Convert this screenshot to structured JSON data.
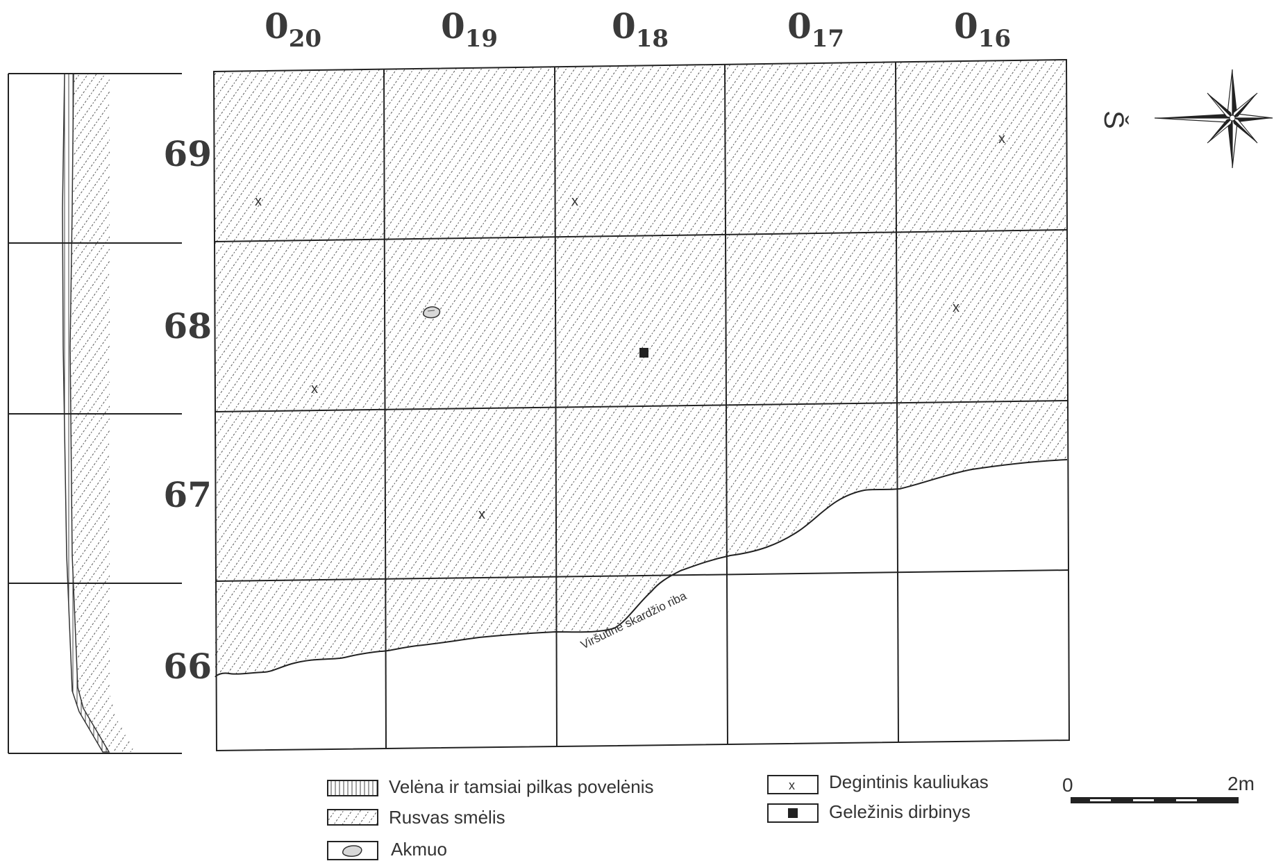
{
  "columns": [
    {
      "main": "0",
      "sub": "20"
    },
    {
      "main": "0",
      "sub": "19"
    },
    {
      "main": "0",
      "sub": "18"
    },
    {
      "main": "0",
      "sub": "17"
    },
    {
      "main": "0",
      "sub": "16"
    }
  ],
  "rows": [
    "69",
    "68",
    "67",
    "66"
  ],
  "boundary_label": "Viršutinė skardžio riba",
  "north_letter": "Š",
  "legend": {
    "veleina": "Velėna ir tamsiai pilkas povelėnis",
    "smelis": "Rusvas smėlis",
    "akmuo": "Akmuo",
    "kauliukas": "Degintinis kauliukas",
    "dirbinys": "Geležinis dirbinys",
    "kauliukas_symbol": "x"
  },
  "scale": {
    "start": "0",
    "end": "2m"
  },
  "finds": [
    {
      "type": "kauliukas",
      "square": "0_20 / 69"
    },
    {
      "type": "kauliukas",
      "square": "0_18 / 69"
    },
    {
      "type": "kauliukas",
      "square": "0_16 / 69"
    },
    {
      "type": "akmuo",
      "square": "0_19 / 68"
    },
    {
      "type": "kauliukas",
      "square": "0_20 / 68"
    },
    {
      "type": "dirbinys",
      "square": "0_18 / 68"
    },
    {
      "type": "kauliukas",
      "square": "0_16 / 68"
    },
    {
      "type": "kauliukas",
      "square": "0_19 / 67"
    }
  ]
}
